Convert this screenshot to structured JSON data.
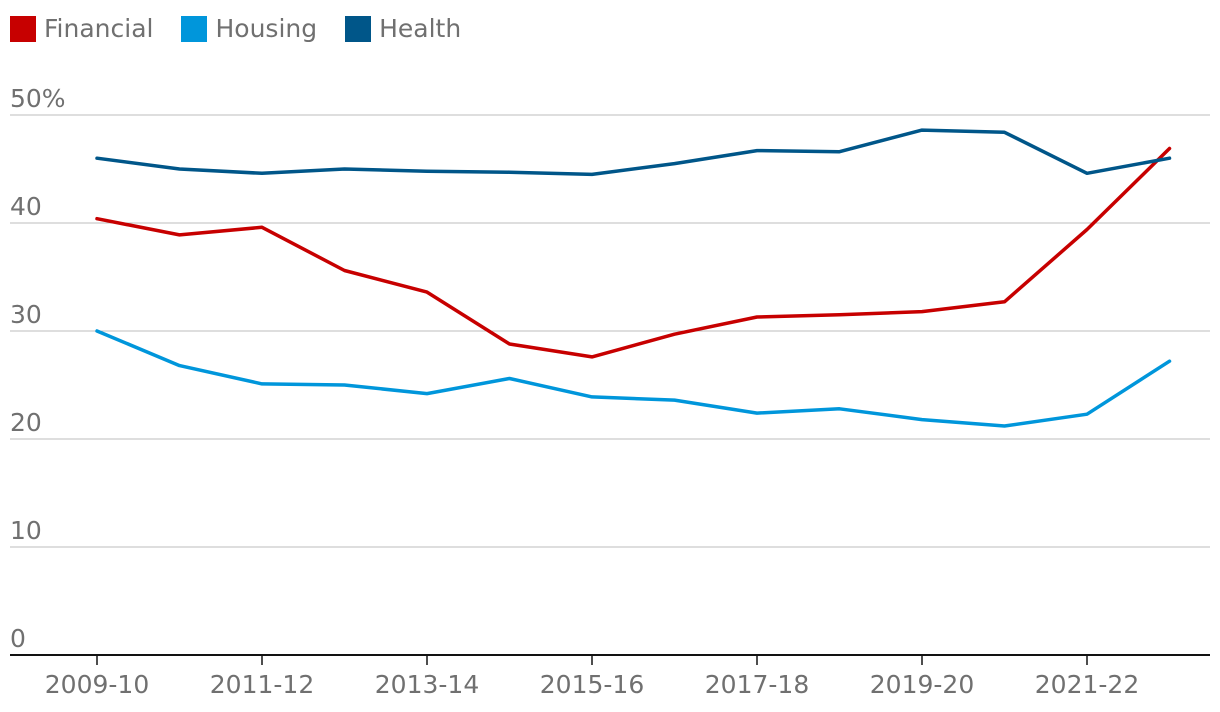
{
  "chart_data": {
    "type": "line",
    "title": "",
    "xlabel": "",
    "ylabel": "",
    "ylim": [
      0,
      50
    ],
    "y_ticks": [
      "0",
      "10",
      "20",
      "30",
      "40",
      "50%"
    ],
    "y_tick_values": [
      0,
      10,
      20,
      30,
      40,
      50
    ],
    "x": [
      "2009-10",
      "2010-11",
      "2011-12",
      "2012-13",
      "2013-14",
      "2014-15",
      "2015-16",
      "2016-17",
      "2017-18",
      "2018-19",
      "2019-20",
      "2020-21",
      "2021-22",
      "2022-23"
    ],
    "x_tick_labels": [
      "2009-10",
      "2011-12",
      "2013-14",
      "2015-16",
      "2017-18",
      "2019-20",
      "2021-22"
    ],
    "series": [
      {
        "name": "Financial",
        "color": "#c70000",
        "values": [
          40.4,
          38.9,
          39.6,
          35.6,
          33.6,
          28.8,
          27.6,
          29.7,
          31.3,
          31.5,
          31.8,
          32.7,
          39.4,
          46.9
        ]
      },
      {
        "name": "Housing",
        "color": "#0096db",
        "values": [
          30.0,
          26.8,
          25.1,
          25.0,
          24.2,
          25.6,
          23.9,
          23.6,
          22.4,
          22.8,
          21.8,
          21.2,
          22.3,
          27.2
        ]
      },
      {
        "name": "Health",
        "color": "#005689",
        "values": [
          46.0,
          45.0,
          44.6,
          45.0,
          44.8,
          44.7,
          44.5,
          45.5,
          46.7,
          46.6,
          48.6,
          48.4,
          44.6,
          46.0
        ]
      }
    ],
    "legend_position": "top-left",
    "grid": true
  }
}
